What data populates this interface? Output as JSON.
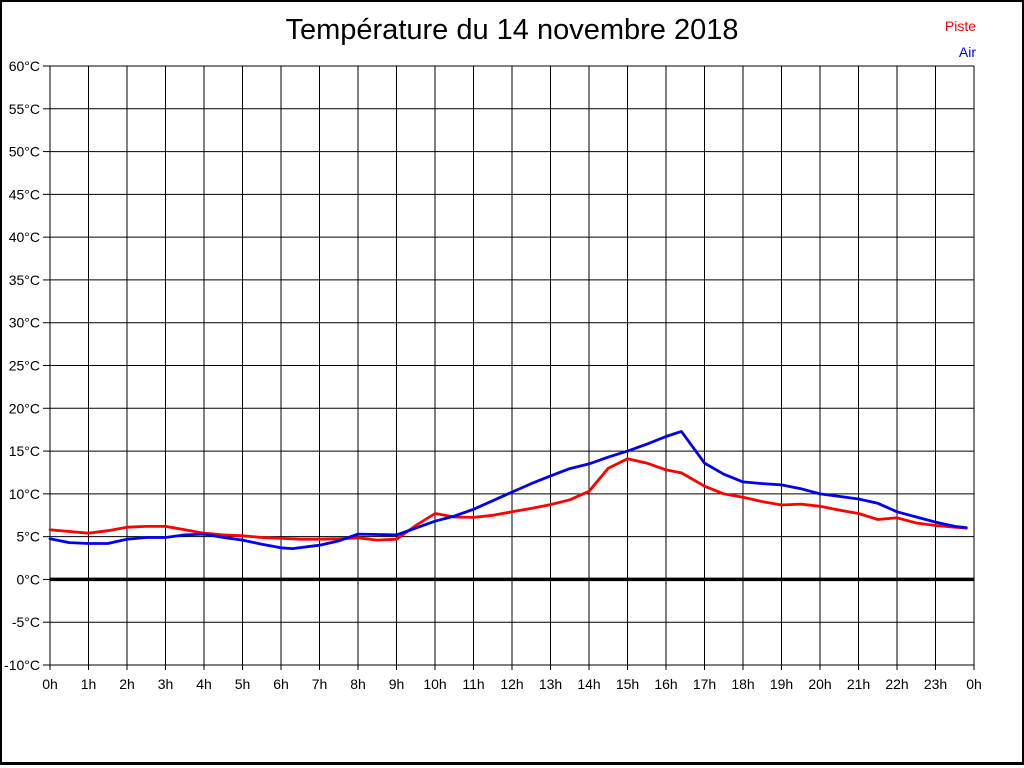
{
  "title": "Température du 14 novembre 2018",
  "legend": {
    "position": "top-right",
    "items": [
      {
        "label": "Piste",
        "color": "#ff0000"
      },
      {
        "label": "Air",
        "color": "#0000f0"
      }
    ]
  },
  "colors": {
    "background": "#ffffff",
    "grid": "#000000",
    "zero_line": "#000000",
    "frame_border": "#000000",
    "piste_line": "#ff0000",
    "air_line": "#0000f0"
  },
  "chart_data": {
    "type": "line",
    "title": "Température du 14 novembre 2018",
    "xlabel": "",
    "ylabel": "",
    "xlim": [
      0,
      24
    ],
    "ylim": [
      -10,
      60
    ],
    "grid": true,
    "x_tick_labels": [
      "0h",
      "1h",
      "2h",
      "3h",
      "4h",
      "5h",
      "6h",
      "7h",
      "8h",
      "9h",
      "10h",
      "11h",
      "12h",
      "13h",
      "14h",
      "15h",
      "16h",
      "17h",
      "18h",
      "19h",
      "20h",
      "21h",
      "22h",
      "23h",
      "0h"
    ],
    "y_tick_labels": [
      "60°C",
      "55°C",
      "50°C",
      "45°C",
      "40°C",
      "35°C",
      "30°C",
      "25°C",
      "20°C",
      "15°C",
      "10°C",
      "5°C",
      "0°C",
      "-5°C",
      "-10°C"
    ],
    "y_tick_values": [
      60,
      55,
      50,
      45,
      40,
      35,
      30,
      25,
      20,
      15,
      10,
      5,
      0,
      -5,
      -10
    ],
    "zero_line_value": 0,
    "legend_position": "top-right",
    "series": [
      {
        "name": "Piste",
        "color": "#ff0000",
        "points": [
          [
            0,
            5.8
          ],
          [
            0.5,
            5.6
          ],
          [
            1,
            5.4
          ],
          [
            1.5,
            5.7
          ],
          [
            2,
            6.1
          ],
          [
            2.5,
            6.2
          ],
          [
            3,
            6.2
          ],
          [
            3.5,
            5.8
          ],
          [
            4,
            5.4
          ],
          [
            4.5,
            5.2
          ],
          [
            5,
            5.1
          ],
          [
            5.5,
            4.9
          ],
          [
            6,
            4.8
          ],
          [
            6.5,
            4.7
          ],
          [
            7,
            4.7
          ],
          [
            7.5,
            4.75
          ],
          [
            8,
            4.85
          ],
          [
            8.5,
            4.6
          ],
          [
            9,
            4.7
          ],
          [
            9.5,
            6.3
          ],
          [
            10,
            7.7
          ],
          [
            10.5,
            7.3
          ],
          [
            11,
            7.25
          ],
          [
            11.5,
            7.5
          ],
          [
            12,
            7.9
          ],
          [
            12.5,
            8.3
          ],
          [
            13,
            8.75
          ],
          [
            13.5,
            9.3
          ],
          [
            14,
            10.3
          ],
          [
            14.5,
            13.0
          ],
          [
            15,
            14.1
          ],
          [
            15.5,
            13.6
          ],
          [
            16,
            12.8
          ],
          [
            16.4,
            12.45
          ],
          [
            17,
            10.9
          ],
          [
            17.5,
            10.0
          ],
          [
            18,
            9.6
          ],
          [
            18.5,
            9.1
          ],
          [
            19,
            8.7
          ],
          [
            19.5,
            8.8
          ],
          [
            20,
            8.55
          ],
          [
            20.5,
            8.1
          ],
          [
            21,
            7.7
          ],
          [
            21.5,
            7.0
          ],
          [
            22,
            7.2
          ],
          [
            22.5,
            6.6
          ],
          [
            23,
            6.3
          ],
          [
            23.5,
            6.1
          ],
          [
            23.8,
            6.0
          ]
        ]
      },
      {
        "name": "Air",
        "color": "#0000f0",
        "points": [
          [
            0,
            4.75
          ],
          [
            0.5,
            4.3
          ],
          [
            1,
            4.2
          ],
          [
            1.5,
            4.2
          ],
          [
            2,
            4.7
          ],
          [
            2.5,
            4.9
          ],
          [
            3,
            4.9
          ],
          [
            3.5,
            5.2
          ],
          [
            4,
            5.3
          ],
          [
            4.5,
            4.9
          ],
          [
            5,
            4.6
          ],
          [
            5.5,
            4.1
          ],
          [
            6,
            3.7
          ],
          [
            6.3,
            3.6
          ],
          [
            7,
            4.0
          ],
          [
            7.5,
            4.5
          ],
          [
            8,
            5.3
          ],
          [
            8.5,
            5.25
          ],
          [
            9,
            5.2
          ],
          [
            9.5,
            6.0
          ],
          [
            10,
            6.8
          ],
          [
            10.5,
            7.4
          ],
          [
            11,
            8.2
          ],
          [
            11.5,
            9.2
          ],
          [
            12,
            10.2
          ],
          [
            12.5,
            11.2
          ],
          [
            13,
            12.1
          ],
          [
            13.5,
            12.95
          ],
          [
            14,
            13.5
          ],
          [
            14.5,
            14.3
          ],
          [
            15,
            15.0
          ],
          [
            15.5,
            15.8
          ],
          [
            16,
            16.7
          ],
          [
            16.4,
            17.3
          ],
          [
            17,
            13.6
          ],
          [
            17.5,
            12.3
          ],
          [
            18,
            11.4
          ],
          [
            18.5,
            11.2
          ],
          [
            19,
            11.05
          ],
          [
            19.5,
            10.6
          ],
          [
            20,
            10.0
          ],
          [
            20.5,
            9.7
          ],
          [
            21,
            9.4
          ],
          [
            21.5,
            8.9
          ],
          [
            22,
            7.9
          ],
          [
            22.5,
            7.3
          ],
          [
            23,
            6.7
          ],
          [
            23.5,
            6.2
          ],
          [
            23.8,
            6.05
          ]
        ]
      }
    ]
  }
}
